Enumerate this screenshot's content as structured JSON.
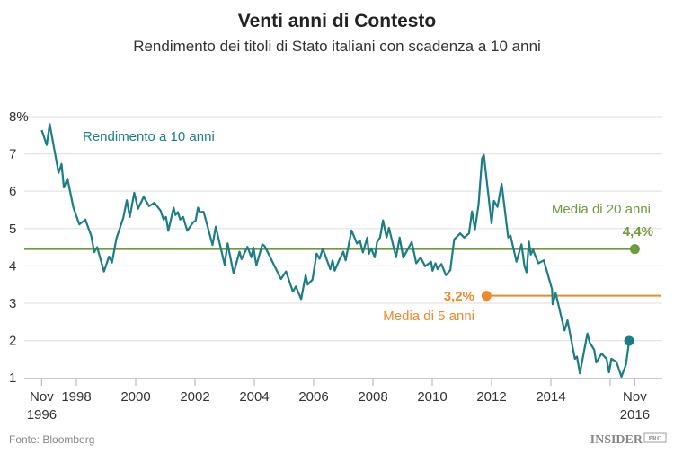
{
  "chart_data": {
    "type": "line",
    "title": "Venti anni di Contesto",
    "subtitle": "Rendimento dei titoli di Stato italiani con scadenza a 10 anni",
    "xlabel": "",
    "ylabel": "",
    "ylim": [
      1,
      8
    ],
    "xlim": [
      1996.83,
      2016.9
    ],
    "grid": true,
    "y_ticks": [
      {
        "value": 8,
        "label": "8%"
      },
      {
        "value": 7,
        "label": "7"
      },
      {
        "value": 6,
        "label": "6"
      },
      {
        "value": 5,
        "label": "5"
      },
      {
        "value": 4,
        "label": "4"
      },
      {
        "value": 3,
        "label": "3"
      },
      {
        "value": 2,
        "label": "2"
      },
      {
        "value": 1,
        "label": "1"
      }
    ],
    "x_ticks": [
      {
        "value": 1996.83,
        "label": "Nov",
        "label2": "1996"
      },
      {
        "value": 1998,
        "label": "1998"
      },
      {
        "value": 2000,
        "label": "2000"
      },
      {
        "value": 2002,
        "label": "2002"
      },
      {
        "value": 2004,
        "label": "2004"
      },
      {
        "value": 2006,
        "label": "2006"
      },
      {
        "value": 2008,
        "label": "2008"
      },
      {
        "value": 2010,
        "label": "2010"
      },
      {
        "value": 2012,
        "label": "2012"
      },
      {
        "value": 2014,
        "label": "2014"
      },
      {
        "value": 2016,
        "label": ""
      },
      {
        "value": 2016.83,
        "label": "Nov",
        "label2": "2016"
      }
    ],
    "series": [
      {
        "name": "Rendimento a 10 anni",
        "color": "#1b7d85",
        "x": [
          1996.83,
          1997.0,
          1997.1,
          1997.4,
          1997.5,
          1997.58,
          1997.7,
          1997.9,
          1998.1,
          1998.3,
          1998.5,
          1998.6,
          1998.7,
          1998.93,
          1999.1,
          1999.2,
          1999.35,
          1999.58,
          1999.7,
          1999.8,
          1999.95,
          2000.08,
          2000.27,
          2000.45,
          2000.63,
          2000.84,
          2000.94,
          2001.02,
          2001.1,
          2001.28,
          2001.34,
          2001.42,
          2001.5,
          2001.6,
          2001.74,
          2001.94,
          2002.02,
          2002.1,
          2002.16,
          2002.29,
          2002.59,
          2002.7,
          2003.0,
          2003.1,
          2003.3,
          2003.5,
          2003.57,
          2003.77,
          2003.9,
          2003.97,
          2004.07,
          2004.27,
          2004.35,
          2004.9,
          2005.07,
          2005.3,
          2005.4,
          2005.58,
          2005.73,
          2005.8,
          2005.96,
          2006.1,
          2006.2,
          2006.31,
          2006.56,
          2006.64,
          2006.71,
          2006.86,
          2007.0,
          2007.08,
          2007.28,
          2007.46,
          2007.56,
          2007.66,
          2007.81,
          2007.86,
          2007.94,
          2008.06,
          2008.14,
          2008.24,
          2008.34,
          2008.46,
          2008.54,
          2008.78,
          2008.9,
          2009.02,
          2009.31,
          2009.46,
          2009.61,
          2009.76,
          2009.96,
          2010.01,
          2010.11,
          2010.18,
          2010.31,
          2010.46,
          2010.61,
          2010.74,
          2010.94,
          2011.08,
          2011.24,
          2011.34,
          2011.44,
          2011.56,
          2011.68,
          2011.74,
          2012.0,
          2012.08,
          2012.2,
          2012.34,
          2012.56,
          2012.64,
          2012.84,
          2013.01,
          2013.11,
          2013.18,
          2013.26,
          2013.32,
          2013.4,
          2013.46,
          2013.58,
          2013.76,
          2014.04,
          2014.06,
          2014.16,
          2014.46,
          2014.56,
          2014.81,
          2014.88,
          2014.98,
          2015.23,
          2015.31,
          2015.46,
          2015.53,
          2015.71,
          2015.88,
          2015.96,
          2016.04,
          2016.21,
          2016.38,
          2016.53,
          2016.64
        ],
        "values": [
          7.64,
          7.24,
          7.8,
          6.49,
          6.73,
          6.1,
          6.34,
          5.56,
          5.11,
          5.24,
          4.81,
          4.37,
          4.5,
          3.85,
          4.25,
          4.09,
          4.73,
          5.28,
          5.76,
          5.31,
          5.96,
          5.53,
          5.85,
          5.6,
          5.69,
          5.48,
          5.24,
          5.31,
          4.94,
          5.56,
          5.36,
          5.44,
          5.24,
          5.31,
          4.94,
          5.17,
          5.21,
          5.56,
          5.44,
          5.45,
          4.56,
          5.05,
          4.03,
          4.6,
          3.8,
          4.38,
          4.18,
          4.51,
          4.23,
          4.49,
          4.01,
          4.58,
          4.53,
          3.65,
          3.85,
          3.31,
          3.45,
          3.11,
          3.75,
          3.5,
          3.63,
          4.33,
          4.19,
          4.46,
          3.91,
          4.15,
          3.87,
          4.15,
          4.38,
          4.15,
          4.95,
          4.6,
          4.68,
          4.36,
          4.76,
          4.32,
          4.47,
          4.23,
          4.64,
          4.76,
          5.22,
          4.76,
          5.02,
          4.23,
          4.76,
          4.22,
          4.64,
          4.07,
          4.22,
          3.99,
          4.11,
          3.87,
          4.07,
          3.91,
          4.05,
          3.75,
          3.89,
          4.71,
          4.87,
          4.76,
          4.87,
          5.46,
          4.98,
          5.64,
          6.88,
          6.97,
          5.14,
          5.74,
          5.58,
          6.2,
          4.76,
          4.81,
          4.11,
          4.58,
          3.99,
          3.83,
          4.65,
          4.3,
          4.43,
          4.3,
          4.07,
          4.15,
          3.37,
          2.97,
          3.27,
          2.27,
          2.54,
          1.51,
          1.57,
          1.12,
          2.19,
          1.95,
          1.75,
          1.41,
          1.65,
          1.51,
          1.15,
          1.51,
          1.43,
          1.03,
          1.35,
          1.99
        ]
      }
    ],
    "reference_lines": [
      {
        "name": "Media di 20 anni",
        "value": 4.45,
        "value_label": "4,4%",
        "color": "#6e9c3c",
        "from": 1996.2,
        "to": 2016.83
      },
      {
        "name": "Media di 5 anni",
        "value": 3.2,
        "value_label": "3,2%",
        "color": "#ea8a2a",
        "from": 2011.83,
        "to": 2017.7
      }
    ],
    "annotations": {
      "series_label": "Rendimento a 10 anni"
    }
  },
  "footer": {
    "source": "Fonte: Bloomberg",
    "logo_text": "INSIDER",
    "logo_badge": "PRO"
  }
}
